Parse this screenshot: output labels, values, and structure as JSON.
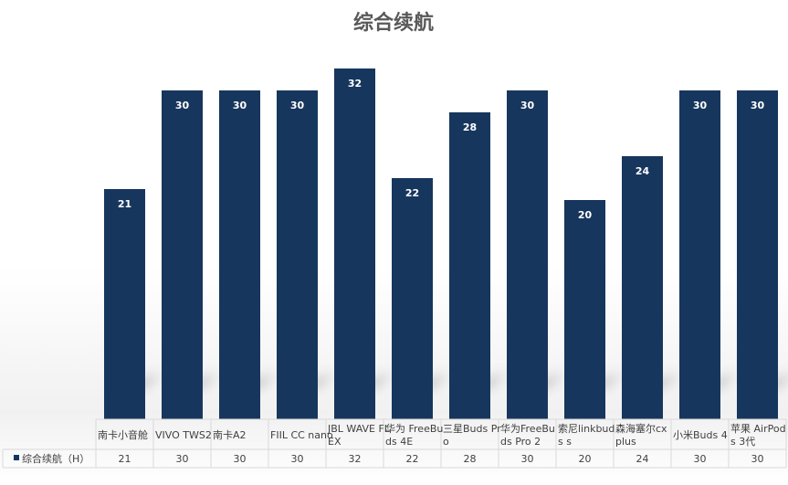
{
  "chart_data": {
    "type": "bar",
    "title": "综合续航",
    "categories": [
      [
        "南卡小音舱"
      ],
      [
        "VIVO TWS2"
      ],
      [
        "南卡A2"
      ],
      [
        "FIIL CC nano"
      ],
      [
        "JBL WAVE FL",
        "EX"
      ],
      [
        "华为 FreeBu",
        "ds 4E"
      ],
      [
        "三星Buds Pr",
        "o"
      ],
      [
        "华为FreeBu",
        "ds Pro 2"
      ],
      [
        "索尼linkbud",
        "s s"
      ],
      [
        "森海塞尔cx",
        "plus"
      ],
      [
        "小米Buds 4"
      ],
      [
        "苹果 AirPod",
        "s 3代"
      ]
    ],
    "series": [
      {
        "name": "综合续航（H）",
        "color": "#17365d",
        "values": [
          21,
          30,
          30,
          30,
          32,
          22,
          28,
          30,
          20,
          24,
          30,
          30
        ]
      }
    ],
    "ylim": [
      0,
      35
    ],
    "grid": false,
    "data_table": true,
    "legend_placement": "data-table"
  }
}
